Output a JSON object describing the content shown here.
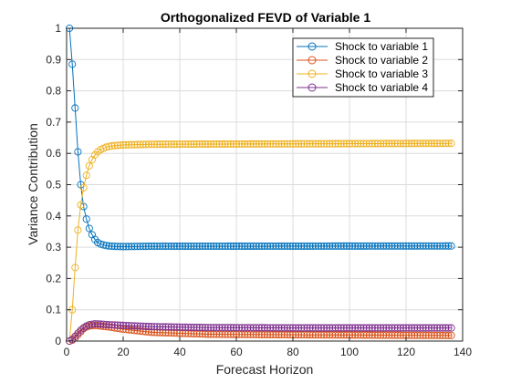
{
  "chart_data": {
    "type": "line",
    "title": "Orthogonalized FEVD of Variable 1",
    "xlabel": "Forecast Horizon",
    "ylabel": "Variance Contribution",
    "xlim": [
      0,
      140
    ],
    "ylim": [
      0,
      1
    ],
    "xticks": [
      0,
      20,
      40,
      60,
      80,
      100,
      120,
      140
    ],
    "yticks": [
      0,
      0.1,
      0.2,
      0.3,
      0.4,
      0.5,
      0.6,
      0.7,
      0.8,
      0.9,
      1
    ],
    "grid": true,
    "legend_position": "top-right",
    "marker": "circle",
    "horizon_max": 136,
    "series": [
      {
        "name": "Shock to variable 1",
        "color": "#0072BD",
        "keypoints": [
          [
            1,
            1.0
          ],
          [
            2,
            0.885
          ],
          [
            3,
            0.745
          ],
          [
            4,
            0.605
          ],
          [
            5,
            0.5
          ],
          [
            6,
            0.43
          ],
          [
            7,
            0.39
          ],
          [
            8,
            0.36
          ],
          [
            9,
            0.34
          ],
          [
            10,
            0.325
          ],
          [
            11,
            0.315
          ],
          [
            12,
            0.31
          ],
          [
            14,
            0.305
          ],
          [
            16,
            0.303
          ],
          [
            20,
            0.302
          ],
          [
            30,
            0.303
          ],
          [
            136,
            0.304
          ]
        ]
      },
      {
        "name": "Shock to variable 2",
        "color": "#D95319",
        "keypoints": [
          [
            1,
            0.0
          ],
          [
            2,
            0.003
          ],
          [
            3,
            0.01
          ],
          [
            4,
            0.02
          ],
          [
            5,
            0.03
          ],
          [
            6,
            0.04
          ],
          [
            7,
            0.045
          ],
          [
            8,
            0.048
          ],
          [
            10,
            0.05
          ],
          [
            12,
            0.048
          ],
          [
            15,
            0.045
          ],
          [
            20,
            0.038
          ],
          [
            30,
            0.028
          ],
          [
            50,
            0.022
          ],
          [
            80,
            0.02
          ],
          [
            136,
            0.018
          ]
        ]
      },
      {
        "name": "Shock to variable 3",
        "color": "#EDB120",
        "keypoints": [
          [
            1,
            0.0
          ],
          [
            2,
            0.1
          ],
          [
            3,
            0.235
          ],
          [
            4,
            0.355
          ],
          [
            5,
            0.435
          ],
          [
            6,
            0.49
          ],
          [
            7,
            0.53
          ],
          [
            8,
            0.56
          ],
          [
            9,
            0.58
          ],
          [
            10,
            0.595
          ],
          [
            11,
            0.605
          ],
          [
            12,
            0.612
          ],
          [
            14,
            0.62
          ],
          [
            16,
            0.624
          ],
          [
            20,
            0.627
          ],
          [
            30,
            0.629
          ],
          [
            60,
            0.63
          ],
          [
            136,
            0.632
          ]
        ]
      },
      {
        "name": "Shock to variable 4",
        "color": "#7E2F8E",
        "keypoints": [
          [
            1,
            0.0
          ],
          [
            2,
            0.005
          ],
          [
            3,
            0.015
          ],
          [
            4,
            0.025
          ],
          [
            5,
            0.035
          ],
          [
            6,
            0.042
          ],
          [
            7,
            0.048
          ],
          [
            8,
            0.052
          ],
          [
            10,
            0.055
          ],
          [
            12,
            0.054
          ],
          [
            15,
            0.052
          ],
          [
            20,
            0.05
          ],
          [
            30,
            0.046
          ],
          [
            50,
            0.043
          ],
          [
            80,
            0.042
          ],
          [
            136,
            0.042
          ]
        ]
      }
    ]
  }
}
